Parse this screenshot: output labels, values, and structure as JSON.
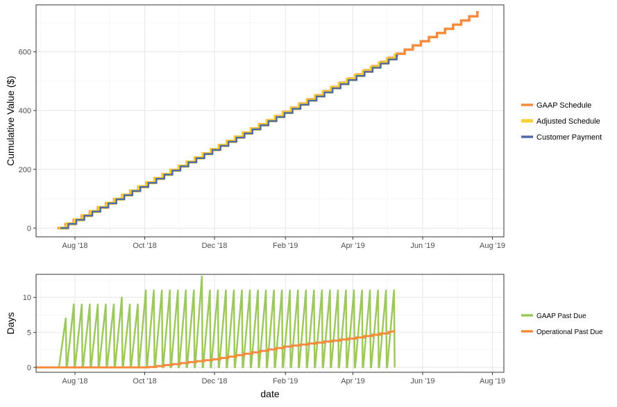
{
  "chart_data": [
    {
      "type": "line",
      "title": "",
      "xlabel": "",
      "ylabel": "Cumulative Value ($)",
      "ylim": [
        -30,
        760
      ],
      "xlim": [
        "2018-06-28",
        "2019-08-11"
      ],
      "grid": true,
      "legend_position": "right",
      "x_ticks": [
        "Aug '18",
        "Oct '18",
        "Dec '18",
        "Feb '19",
        "Apr '19",
        "Jun '19",
        "Aug '19"
      ],
      "x_tick_dates": [
        "2018-08-01",
        "2018-10-01",
        "2018-12-01",
        "2019-02-01",
        "2019-04-01",
        "2019-06-01",
        "2019-08-01"
      ],
      "y_ticks": [
        0,
        200,
        400,
        600
      ],
      "series": [
        {
          "name": "GAAP Schedule",
          "color": "#f58b3c",
          "start": "2018-07-18",
          "end": "2019-07-20",
          "start_value": 0,
          "end_value": 735
        },
        {
          "name": "Adjusted Schedule",
          "color": "#f5cf37",
          "start": "2018-07-18",
          "end": "2019-05-08",
          "start_value": 0,
          "end_value": 590
        },
        {
          "name": "Customer Payment",
          "color": "#4f6aa5",
          "start": "2018-07-18",
          "end": "2019-05-08",
          "start_value": 0,
          "end_value": 588
        }
      ]
    },
    {
      "type": "line",
      "title": "",
      "xlabel": "date",
      "ylabel": "Days",
      "ylim": [
        -0.7,
        13.3
      ],
      "xlim": [
        "2018-06-28",
        "2019-08-11"
      ],
      "grid": true,
      "legend_position": "right",
      "x_ticks": [
        "Aug '18",
        "Oct '18",
        "Dec '18",
        "Feb '19",
        "Apr '19",
        "Jun '19",
        "Aug '19"
      ],
      "x_tick_dates": [
        "2018-08-01",
        "2018-10-01",
        "2018-12-01",
        "2019-02-01",
        "2019-04-01",
        "2019-06-01",
        "2019-08-01"
      ],
      "y_ticks": [
        0,
        5,
        10
      ],
      "series": [
        {
          "name": "GAAP Past Due",
          "color": "#9dc85c",
          "start": "2018-07-18",
          "end": "2019-05-08",
          "peak_days": [
            7,
            9,
            9,
            9,
            9,
            9,
            9,
            10,
            9,
            9,
            11,
            11,
            11,
            11,
            11,
            11,
            11,
            13,
            11,
            11,
            11,
            11,
            11,
            11,
            11,
            11,
            11,
            11,
            11,
            11,
            11,
            11,
            11,
            11,
            11,
            11,
            11,
            11,
            11,
            11,
            11,
            11
          ]
        },
        {
          "name": "Operational Past Due",
          "color": "#f58b3c",
          "points": [
            [
              "2018-06-28",
              0
            ],
            [
              "2018-10-01",
              0
            ],
            [
              "2018-12-01",
              1.2
            ],
            [
              "2019-02-01",
              3.0
            ],
            [
              "2019-04-01",
              4.2
            ],
            [
              "2019-05-08",
              5.2
            ]
          ]
        }
      ]
    }
  ]
}
